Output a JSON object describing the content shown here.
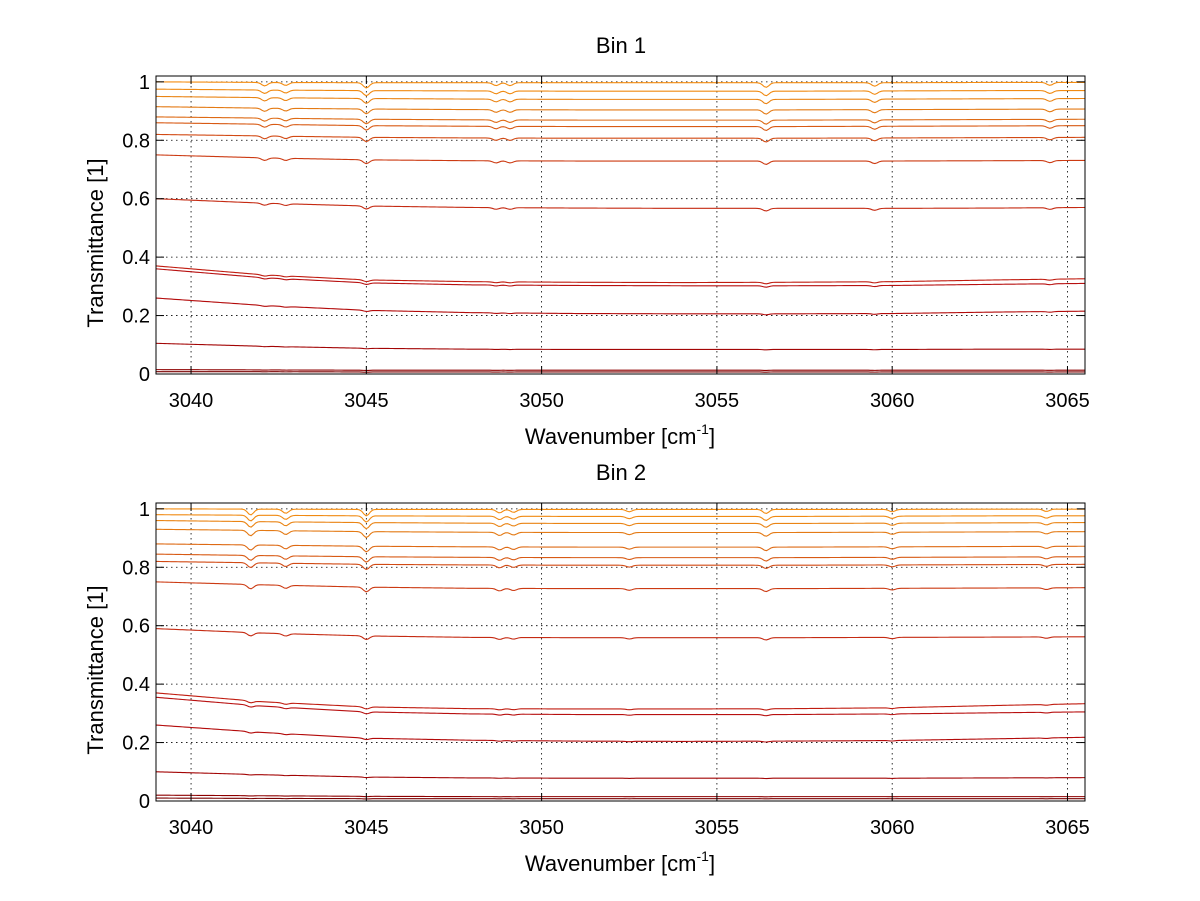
{
  "chart_data": [
    {
      "type": "line",
      "title": "Bin 1",
      "xlabel": {
        "base": "Wavenumber [cm",
        "sup": "-1",
        "close": "]"
      },
      "ylabel": "Transmittance [1]",
      "xlim": [
        3039,
        3065.5
      ],
      "ylim": [
        0,
        1.02
      ],
      "xticks": [
        3040,
        3045,
        3050,
        3055,
        3060,
        3065
      ],
      "xtick_labels": [
        "3040",
        "3045",
        "3050",
        "3055",
        "3060",
        "3065"
      ],
      "yticks": [
        0,
        0.2,
        0.4,
        0.6,
        0.8,
        1
      ],
      "ytick_labels": [
        "0",
        "0.2",
        "0.4",
        "0.6",
        "0.8",
        "1"
      ],
      "grid": "dotted",
      "x": [
        3039,
        3042,
        3045,
        3048,
        3051,
        3054,
        3057,
        3060,
        3063,
        3065.5
      ],
      "series_colors": [
        "#7a0000",
        "#8e0000",
        "#a30505",
        "#b30a0a",
        "#b81010",
        "#c01c10",
        "#c52a12",
        "#cc3a12",
        "#d24a14",
        "#d85a14",
        "#de6a14",
        "#e47a14",
        "#ea8414",
        "#f08a12",
        "#f48c10"
      ],
      "series": [
        {
          "values": [
            0.008,
            0.008,
            0.007,
            0.007,
            0.007,
            0.007,
            0.007,
            0.007,
            0.007,
            0.007
          ]
        },
        {
          "values": [
            0.015,
            0.014,
            0.013,
            0.013,
            0.013,
            0.013,
            0.013,
            0.013,
            0.013,
            0.013
          ]
        },
        {
          "values": [
            0.105,
            0.095,
            0.088,
            0.085,
            0.084,
            0.084,
            0.084,
            0.084,
            0.085,
            0.085
          ]
        },
        {
          "values": [
            0.26,
            0.235,
            0.218,
            0.21,
            0.207,
            0.206,
            0.206,
            0.207,
            0.212,
            0.215
          ]
        },
        {
          "values": [
            0.36,
            0.33,
            0.312,
            0.305,
            0.303,
            0.302,
            0.302,
            0.303,
            0.307,
            0.31
          ]
        },
        {
          "values": [
            0.37,
            0.34,
            0.322,
            0.316,
            0.314,
            0.313,
            0.314,
            0.316,
            0.322,
            0.326
          ]
        },
        {
          "values": [
            0.6,
            0.585,
            0.575,
            0.57,
            0.568,
            0.567,
            0.567,
            0.567,
            0.568,
            0.57
          ]
        },
        {
          "values": [
            0.75,
            0.74,
            0.733,
            0.73,
            0.729,
            0.729,
            0.729,
            0.729,
            0.73,
            0.731
          ]
        },
        {
          "values": [
            0.82,
            0.815,
            0.81,
            0.808,
            0.807,
            0.807,
            0.807,
            0.808,
            0.809,
            0.81
          ]
        },
        {
          "values": [
            0.86,
            0.855,
            0.85,
            0.848,
            0.847,
            0.847,
            0.847,
            0.848,
            0.849,
            0.85
          ]
        },
        {
          "values": [
            0.88,
            0.876,
            0.872,
            0.87,
            0.869,
            0.869,
            0.869,
            0.87,
            0.871,
            0.872
          ]
        },
        {
          "values": [
            0.915,
            0.91,
            0.907,
            0.905,
            0.904,
            0.904,
            0.904,
            0.905,
            0.906,
            0.907
          ]
        },
        {
          "values": [
            0.95,
            0.946,
            0.943,
            0.941,
            0.94,
            0.94,
            0.94,
            0.941,
            0.942,
            0.943
          ]
        },
        {
          "values": [
            0.975,
            0.972,
            0.97,
            0.969,
            0.968,
            0.968,
            0.968,
            0.969,
            0.97,
            0.97
          ]
        },
        {
          "values": [
            1.0,
            0.998,
            0.997,
            0.997,
            0.997,
            0.997,
            0.997,
            0.997,
            0.998,
            0.998
          ]
        }
      ],
      "absorption_lines": [
        {
          "x": 3042.1,
          "depth": 0.012
        },
        {
          "x": 3042.7,
          "depth": 0.01
        },
        {
          "x": 3045.0,
          "depth": 0.018
        },
        {
          "x": 3048.7,
          "depth": 0.01
        },
        {
          "x": 3049.1,
          "depth": 0.01
        },
        {
          "x": 3056.4,
          "depth": 0.016
        },
        {
          "x": 3059.5,
          "depth": 0.012
        },
        {
          "x": 3064.5,
          "depth": 0.01
        }
      ]
    },
    {
      "type": "line",
      "title": "Bin 2",
      "xlabel": {
        "base": "Wavenumber [cm",
        "sup": "-1",
        "close": "]"
      },
      "ylabel": "Transmittance [1]",
      "xlim": [
        3039,
        3065.5
      ],
      "ylim": [
        0,
        1.02
      ],
      "xticks": [
        3040,
        3045,
        3050,
        3055,
        3060,
        3065
      ],
      "xtick_labels": [
        "3040",
        "3045",
        "3050",
        "3055",
        "3060",
        "3065"
      ],
      "yticks": [
        0,
        0.2,
        0.4,
        0.6,
        0.8,
        1
      ],
      "ytick_labels": [
        "0",
        "0.2",
        "0.4",
        "0.6",
        "0.8",
        "1"
      ],
      "grid": "dotted",
      "x": [
        3039,
        3042,
        3045,
        3048,
        3051,
        3054,
        3057,
        3060,
        3063,
        3065.5
      ],
      "series_colors": [
        "#7a0000",
        "#8e0000",
        "#a30505",
        "#b30a0a",
        "#b81010",
        "#c01c10",
        "#c52a12",
        "#cc3a12",
        "#d24a14",
        "#d85a14",
        "#de6a14",
        "#e47a14",
        "#ea8414",
        "#f08a12",
        "#f48c10"
      ],
      "series": [
        {
          "values": [
            0.01,
            0.009,
            0.008,
            0.008,
            0.008,
            0.008,
            0.008,
            0.008,
            0.008,
            0.008
          ]
        },
        {
          "values": [
            0.02,
            0.018,
            0.016,
            0.015,
            0.015,
            0.015,
            0.015,
            0.015,
            0.015,
            0.015
          ]
        },
        {
          "values": [
            0.1,
            0.09,
            0.082,
            0.079,
            0.078,
            0.078,
            0.078,
            0.078,
            0.079,
            0.08
          ]
        },
        {
          "values": [
            0.26,
            0.235,
            0.215,
            0.208,
            0.205,
            0.204,
            0.205,
            0.207,
            0.213,
            0.218
          ]
        },
        {
          "values": [
            0.355,
            0.325,
            0.305,
            0.298,
            0.296,
            0.296,
            0.296,
            0.298,
            0.302,
            0.305
          ]
        },
        {
          "values": [
            0.37,
            0.34,
            0.322,
            0.316,
            0.315,
            0.315,
            0.316,
            0.319,
            0.327,
            0.333
          ]
        },
        {
          "values": [
            0.59,
            0.575,
            0.565,
            0.56,
            0.559,
            0.559,
            0.559,
            0.56,
            0.561,
            0.562
          ]
        },
        {
          "values": [
            0.75,
            0.74,
            0.732,
            0.728,
            0.727,
            0.727,
            0.727,
            0.728,
            0.729,
            0.73
          ]
        },
        {
          "values": [
            0.82,
            0.815,
            0.81,
            0.808,
            0.807,
            0.807,
            0.807,
            0.808,
            0.809,
            0.81
          ]
        },
        {
          "values": [
            0.845,
            0.84,
            0.836,
            0.834,
            0.833,
            0.833,
            0.833,
            0.834,
            0.835,
            0.836
          ]
        },
        {
          "values": [
            0.88,
            0.876,
            0.872,
            0.87,
            0.869,
            0.869,
            0.869,
            0.87,
            0.871,
            0.872
          ]
        },
        {
          "values": [
            0.93,
            0.926,
            0.922,
            0.92,
            0.919,
            0.919,
            0.919,
            0.92,
            0.921,
            0.922
          ]
        },
        {
          "values": [
            0.96,
            0.956,
            0.953,
            0.951,
            0.95,
            0.95,
            0.95,
            0.951,
            0.952,
            0.953
          ]
        },
        {
          "values": [
            0.98,
            0.978,
            0.976,
            0.975,
            0.974,
            0.974,
            0.974,
            0.975,
            0.976,
            0.976
          ]
        },
        {
          "values": [
            1.0,
            0.999,
            0.998,
            0.998,
            0.998,
            0.998,
            0.998,
            0.998,
            0.999,
            0.999
          ]
        }
      ],
      "absorption_lines": [
        {
          "x": 3041.7,
          "depth": 0.02
        },
        {
          "x": 3042.7,
          "depth": 0.014
        },
        {
          "x": 3045.0,
          "depth": 0.022
        },
        {
          "x": 3048.8,
          "depth": 0.012
        },
        {
          "x": 3049.2,
          "depth": 0.01
        },
        {
          "x": 3052.5,
          "depth": 0.008
        },
        {
          "x": 3056.4,
          "depth": 0.014
        },
        {
          "x": 3060.0,
          "depth": 0.008
        },
        {
          "x": 3064.4,
          "depth": 0.008
        }
      ]
    }
  ]
}
